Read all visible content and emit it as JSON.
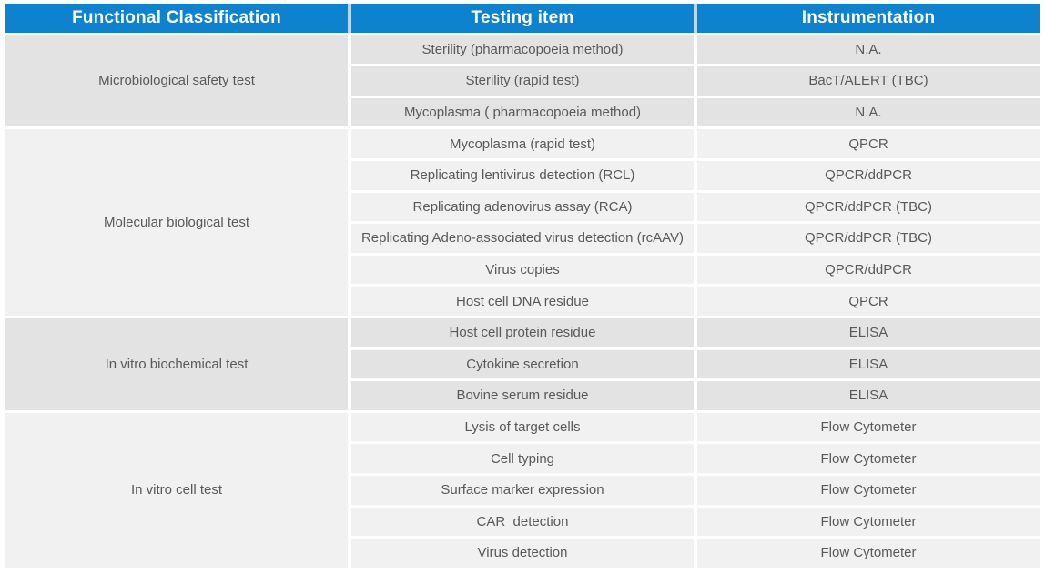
{
  "colors": {
    "header_bg": "#0d83d0",
    "header_text": "#ffffff",
    "header_divider": "#b7d9f0",
    "row_bg_dark": "#e3e3e3",
    "row_bg_light": "#f1f1f1",
    "body_text": "#595959",
    "page_bg": "#ffffff"
  },
  "chart_data": {
    "type": "table",
    "title": "",
    "columns": [
      "Functional Classification",
      "Testing item",
      "Instrumentation"
    ],
    "groups": [
      {
        "classification": "Microbiological safety test",
        "rows": [
          {
            "item": "Sterility (pharmacopoeia method)",
            "instrument": "N.A."
          },
          {
            "item": "Sterility (rapid test)",
            "instrument": "BacT/ALERT (TBC)"
          },
          {
            "item": "Mycoplasma ( pharmacopoeia method)",
            "instrument": "N.A."
          }
        ]
      },
      {
        "classification": "Molecular biological test",
        "rows": [
          {
            "item": "Mycoplasma (rapid test)",
            "instrument": "QPCR"
          },
          {
            "item": "Replicating lentivirus detection (RCL)",
            "instrument": "QPCR/ddPCR"
          },
          {
            "item": "Replicating adenovirus assay (RCA)",
            "instrument": "QPCR/ddPCR (TBC)"
          },
          {
            "item": "Replicating Adeno-associated virus detection (rcAAV)",
            "instrument": "QPCR/ddPCR (TBC)"
          },
          {
            "item": "Virus copies",
            "instrument": "QPCR/ddPCR"
          },
          {
            "item": "Host cell DNA residue",
            "instrument": "QPCR"
          }
        ]
      },
      {
        "classification": "In vitro biochemical test",
        "rows": [
          {
            "item": "Host cell protein residue",
            "instrument": "ELISA"
          },
          {
            "item": "Cytokine secretion",
            "instrument": "ELISA"
          },
          {
            "item": "Bovine serum residue",
            "instrument": "ELISA"
          }
        ]
      },
      {
        "classification": "In vitro cell test",
        "rows": [
          {
            "item": "Lysis of target cells",
            "instrument": "Flow Cytometer"
          },
          {
            "item": "Cell typing",
            "instrument": "Flow Cytometer"
          },
          {
            "item": "Surface marker expression",
            "instrument": "Flow Cytometer"
          },
          {
            "item": "CAR  detection",
            "instrument": "Flow Cytometer"
          },
          {
            "item": "Virus detection",
            "instrument": "Flow Cytometer"
          }
        ]
      }
    ]
  }
}
